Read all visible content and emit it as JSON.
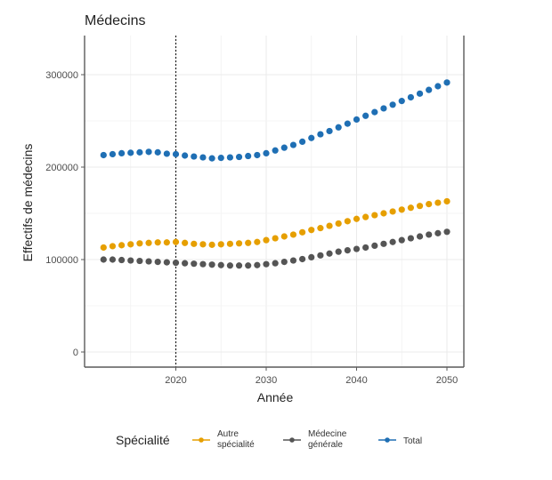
{
  "chart_data": {
    "type": "scatter",
    "title": "Médecins",
    "xlabel": "Année",
    "ylabel": "Effectifs de médecins",
    "xlim": [
      2011,
      2052
    ],
    "ylim": [
      -15000,
      340000
    ],
    "x_ticks": [
      2020,
      2030,
      2040,
      2050
    ],
    "x_tick_labels": [
      "2020",
      "2030",
      "2040",
      "2050"
    ],
    "y_ticks": [
      0,
      100000,
      200000,
      300000
    ],
    "y_tick_labels": [
      "0",
      "100000",
      "200000",
      "300000"
    ],
    "grid": true,
    "vline": {
      "x": 2020,
      "style": "dotted",
      "color": "#222222"
    },
    "legend": {
      "title": "Spécialité",
      "placement": "bottom",
      "entries": [
        {
          "label_lines": [
            "Autre",
            "spécialité"
          ],
          "color": "#E69F00"
        },
        {
          "label_lines": [
            "Médecine",
            "générale"
          ],
          "color": "#555555"
        },
        {
          "label_lines": [
            "Total"
          ],
          "color": "#1F6FB4"
        }
      ]
    },
    "x": [
      2012,
      2013,
      2014,
      2015,
      2016,
      2017,
      2018,
      2019,
      2020,
      2021,
      2022,
      2023,
      2024,
      2025,
      2026,
      2027,
      2028,
      2029,
      2030,
      2031,
      2032,
      2033,
      2034,
      2035,
      2036,
      2037,
      2038,
      2039,
      2040,
      2041,
      2042,
      2043,
      2044,
      2045,
      2046,
      2047,
      2048,
      2049,
      2050
    ],
    "series": [
      {
        "name": "Autre spécialité",
        "color": "#E69F00",
        "values": [
          113000,
          114500,
          115500,
          116500,
          117500,
          118000,
          118500,
          118500,
          119000,
          118000,
          117000,
          116500,
          116000,
          116500,
          117000,
          117500,
          118000,
          119000,
          121000,
          123000,
          125000,
          127000,
          129500,
          132000,
          134000,
          136500,
          139000,
          141500,
          144000,
          146000,
          148000,
          150000,
          152000,
          154000,
          156000,
          158000,
          160000,
          161500,
          163000
        ]
      },
      {
        "name": "Médecine générale",
        "color": "#555555",
        "values": [
          100000,
          100000,
          99500,
          99000,
          98500,
          98000,
          97500,
          97000,
          96500,
          96000,
          95500,
          95000,
          94500,
          94000,
          93500,
          93500,
          93500,
          94000,
          95000,
          96000,
          97500,
          99000,
          100500,
          102500,
          104500,
          106500,
          108500,
          110000,
          111500,
          113000,
          115000,
          117000,
          119000,
          121000,
          123000,
          125000,
          127000,
          128500,
          130000
        ]
      },
      {
        "name": "Total",
        "color": "#1F6FB4",
        "values": [
          213000,
          214000,
          215000,
          215500,
          216000,
          216500,
          216000,
          214500,
          214000,
          212500,
          211500,
          210500,
          209500,
          210000,
          210500,
          211000,
          212000,
          213000,
          215000,
          218000,
          221000,
          224000,
          227500,
          231500,
          235500,
          239000,
          243000,
          247000,
          251500,
          255500,
          259500,
          263500,
          267500,
          271500,
          275500,
          279500,
          283500,
          287500,
          291500
        ]
      }
    ]
  }
}
